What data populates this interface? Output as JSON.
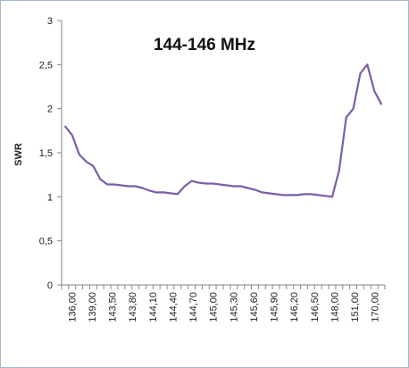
{
  "chart_data": {
    "type": "line",
    "title": "144-146 MHz",
    "xlabel": "",
    "ylabel": "SWR",
    "ylim": [
      0,
      3
    ],
    "y_ticks": [
      "0",
      "0,5",
      "1",
      "1,5",
      "2",
      "2,5",
      "3"
    ],
    "grid": false,
    "legend": "none",
    "line_color": "#7b5ea7",
    "x_tick_labels": [
      "136,00",
      "139,00",
      "143,50",
      "143,80",
      "144,10",
      "144,40",
      "144,70",
      "145,00",
      "145,30",
      "145,60",
      "145,90",
      "146,20",
      "146,50",
      "148,00",
      "151,00",
      "170,00"
    ],
    "series": [
      {
        "values": [
          1.8,
          1.7,
          1.48,
          1.4,
          1.35,
          1.2,
          1.14,
          1.14,
          1.13,
          1.12,
          1.12,
          1.1,
          1.07,
          1.05,
          1.05,
          1.04,
          1.03,
          1.12,
          1.18,
          1.16,
          1.15,
          1.15,
          1.14,
          1.13,
          1.12,
          1.12,
          1.1,
          1.08,
          1.05,
          1.04,
          1.03,
          1.02,
          1.02,
          1.02,
          1.03,
          1.03,
          1.02,
          1.01,
          1.0,
          1.3,
          1.9,
          2.0,
          2.4,
          2.5,
          2.2,
          2.05
        ]
      }
    ]
  }
}
